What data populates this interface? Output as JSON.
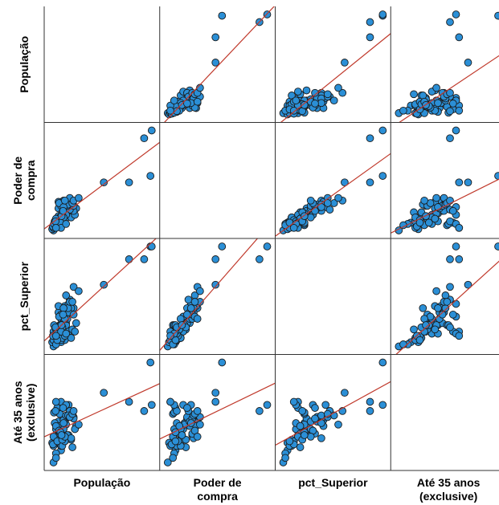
{
  "chart_data": {
    "type": "scatter",
    "subtype": "scatterplot-matrix",
    "variables": [
      "População",
      "Poder de compra",
      "pct_Superior",
      "Até 35 anos (exclusive)"
    ],
    "row_labels": [
      [
        "População"
      ],
      [
        "Poder de",
        "compra"
      ],
      [
        "pct_Superior"
      ],
      [
        "Até 35 anos",
        "(exclusive)"
      ]
    ],
    "col_labels": [
      [
        "População"
      ],
      [
        "Poder de",
        "compra"
      ],
      [
        "pct_Superior"
      ],
      [
        "Até 35 anos",
        "(exclusive)"
      ]
    ],
    "fit_line": "linear",
    "grid": false,
    "point_color": "#2b8fd6",
    "point_edge_color": "#1a1a1a",
    "line_color": "#c0392b",
    "data": {
      "populacao": [
        0.4,
        0.55,
        0.7,
        0.85,
        1.0,
        0.3,
        0.2,
        0.1,
        0.15,
        0.25,
        0.35,
        0.45,
        0.6,
        0.8,
        0.95,
        0.6,
        0.4,
        0.4,
        0.55,
        0.7,
        0.9,
        0.45,
        0.05,
        0.1,
        0.2,
        0.35,
        0.55,
        0.75,
        0.65,
        0.8,
        0.3,
        0.2,
        0.15,
        0.1,
        0.08,
        0.5,
        0.6,
        0.25,
        0.4,
        0.3,
        0.5,
        0.7,
        0.35,
        0.6,
        0.9,
        0.2,
        0.12,
        0.45,
        0.32,
        0.68,
        0.25,
        0.5,
        0.38,
        0.4,
        0.75,
        0.18,
        0.55,
        0.42,
        0.85,
        0.6,
        0.2,
        0.9,
        1.1,
        0.48,
        2.1,
        3.1,
        3.7,
        3.95,
        4.0
      ],
      "poder_compra": [
        0.35,
        0.4,
        0.6,
        0.75,
        0.9,
        0.6,
        0.3,
        0.05,
        0.2,
        0.45,
        0.55,
        0.7,
        0.8,
        0.55,
        0.65,
        0.7,
        0.4,
        0.9,
        1.1,
        0.95,
        0.8,
        0.55,
        0.1,
        0.15,
        0.3,
        0.5,
        0.45,
        0.85,
        1.0,
        1.05,
        0.9,
        0.25,
        0.4,
        0.25,
        0.2,
        1.2,
        0.65,
        0.35,
        1.0,
        1.15,
        0.55,
        1.05,
        0.25,
        1.1,
        1.0,
        0.5,
        0.3,
        0.75,
        1.1,
        1.05,
        0.35,
        0.95,
        0.35,
        0.15,
        1.3,
        0.4,
        1.2,
        0.6,
        1.1,
        0.3,
        0.15,
        1.2,
        1.3,
        0.8,
        1.9,
        1.9,
        3.6,
        2.15,
        3.9
      ],
      "pct_superior": [
        0.15,
        0.2,
        0.4,
        0.45,
        0.6,
        0.45,
        0.1,
        0.05,
        0.25,
        0.3,
        0.25,
        0.55,
        0.6,
        0.25,
        0.4,
        0.55,
        0.2,
        0.7,
        1.0,
        1.05,
        0.95,
        0.25,
        0.15,
        0.2,
        0.35,
        0.45,
        0.3,
        1.15,
        0.7,
        0.95,
        0.85,
        0.1,
        0.35,
        0.4,
        0.3,
        0.95,
        0.75,
        0.2,
        0.8,
        1.0,
        0.7,
        0.85,
        0.55,
        1.25,
        0.8,
        0.45,
        0.55,
        0.5,
        0.75,
        0.95,
        0.4,
        0.95,
        0.55,
        0.4,
        1.1,
        0.5,
        0.7,
        0.55,
        1.1,
        0.35,
        0.3,
        1.45,
        1.35,
        0.8,
        1.5,
        2.1,
        2.1,
        2.4,
        2.4
      ],
      "ate35": [
        0.8,
        1.1,
        1.3,
        0.9,
        1.6,
        1.3,
        0.7,
        0.4,
        1.0,
        1.1,
        1.05,
        1.7,
        1.85,
        1.15,
        1.5,
        1.65,
        0.95,
        1.75,
        1.8,
        2.3,
        1.9,
        0.95,
        1.05,
        0.95,
        1.5,
        1.35,
        1.1,
        2.1,
        1.3,
        1.2,
        1.75,
        0.55,
        1.7,
        1.25,
        1.0,
        1.8,
        2.3,
        1.1,
        1.35,
        1.6,
        1.5,
        1.9,
        2.0,
        1.95,
        1.85,
        1.6,
        2.05,
        1.15,
        1.45,
        1.95,
        2.2,
        1.7,
        1.4,
        2.4,
        1.9,
        2.1,
        1.25,
        1.3,
        2.0,
        2.3,
        2.4,
        2.1,
        1.65,
        2.2,
        2.7,
        2.4,
        2.1,
        3.7,
        2.3
      ]
    },
    "data_keys": [
      "populacao",
      "poder_compra",
      "pct_superior",
      "ate35"
    ]
  }
}
